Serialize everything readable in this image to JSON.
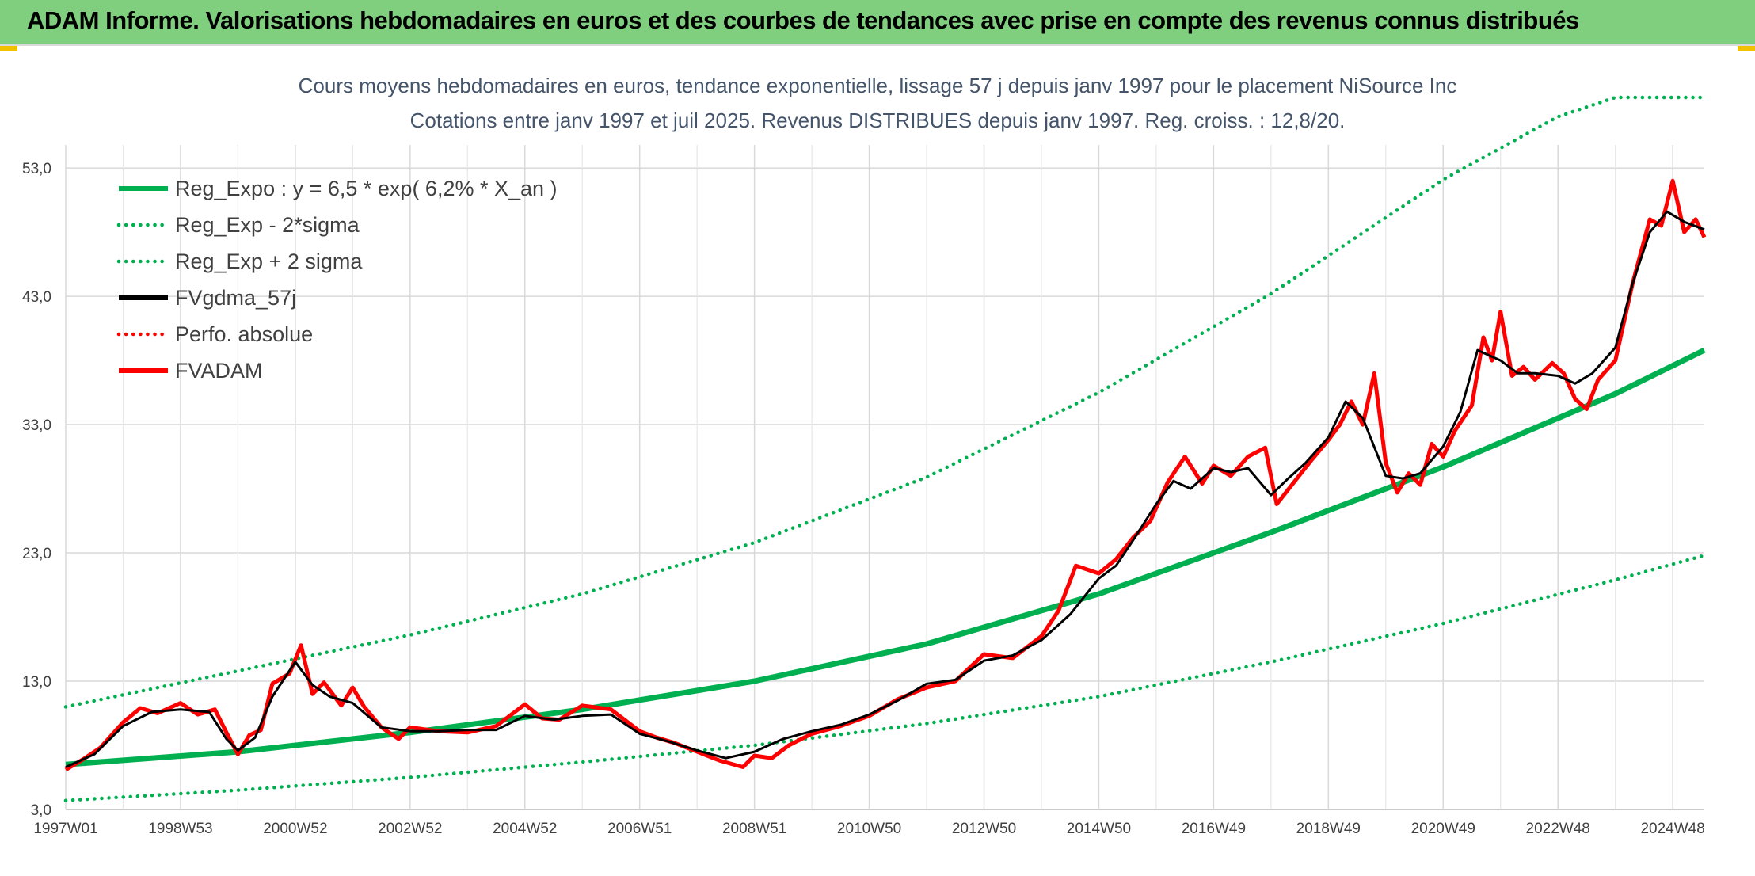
{
  "header": {
    "title": "ADAM Informe. Valorisations hebdomadaires en euros et des courbes de tendances avec prise en compte des revenus connus distribués"
  },
  "chart_data": {
    "type": "line",
    "title": "Cours moyens hebdomadaires en euros, tendance exponentielle, lissage 57 j depuis janv 1997 pour le placement NiSource Inc",
    "subtitle": "Cotations entre janv 1997 et juil 2025. Revenus DISTRIBUES depuis janv 1997. Reg. croiss. : 12,8/20.",
    "xlabel": "",
    "ylabel": "",
    "ylim": [
      3.0,
      58.5
    ],
    "xlim": [
      1997.0,
      2025.55
    ],
    "yticks": [
      "3,0",
      "13,0",
      "23,0",
      "33,0",
      "43,0",
      "53,0"
    ],
    "ytick_values": [
      3,
      13,
      23,
      33,
      43,
      53
    ],
    "xticks": [
      "1997W01",
      "1998W53",
      "2000W52",
      "2002W52",
      "2004W52",
      "2006W51",
      "2008W51",
      "2010W50",
      "2012W50",
      "2014W50",
      "2016W49",
      "2018W49",
      "2020W49",
      "2022W48",
      "2024W48"
    ],
    "xtick_values": [
      1997.0,
      1999.0,
      2001.0,
      2003.0,
      2005.0,
      2007.0,
      2009.0,
      2011.0,
      2013.0,
      2015.0,
      2017.0,
      2019.0,
      2021.0,
      2023.0,
      2025.0
    ],
    "grid": true,
    "legend_position": "top-left",
    "series": [
      {
        "name": "Reg_Expo : y = 6,5 * exp( 6,2% *  X_an )",
        "color": "#00b050",
        "style": "solid",
        "x": [
          1997.0,
          2000.0,
          2003.0,
          2006.0,
          2009.0,
          2012.0,
          2015.0,
          2018.0,
          2021.0,
          2024.0,
          2025.55
        ],
        "y": [
          6.5,
          7.5,
          9.0,
          10.8,
          13.0,
          15.9,
          19.8,
          24.6,
          29.7,
          35.4,
          38.8
        ]
      },
      {
        "name": "Reg_Exp - 2*sigma",
        "color": "#00b050",
        "style": "dotted",
        "x": [
          1997.0,
          2000.0,
          2003.0,
          2006.0,
          2009.0,
          2012.0,
          2015.0,
          2018.0,
          2021.0,
          2024.0,
          2025.55
        ],
        "y": [
          3.7,
          4.5,
          5.5,
          6.7,
          8.0,
          9.7,
          11.8,
          14.5,
          17.5,
          20.9,
          22.8
        ]
      },
      {
        "name": "Reg_Exp + 2 sigma",
        "color": "#00b050",
        "style": "dotted",
        "x": [
          1997.0,
          2000.0,
          2003.0,
          2006.0,
          2009.0,
          2012.0,
          2015.0,
          2018.0,
          2021.0,
          2023.0,
          2024.0,
          2025.55
        ],
        "y": [
          11.0,
          13.8,
          16.6,
          19.8,
          23.8,
          28.9,
          35.5,
          43.2,
          52.1,
          57.0,
          58.5,
          58.5
        ]
      },
      {
        "name": "FVgdma_57j",
        "color": "#000000",
        "style": "solid",
        "x": [
          1997.0,
          1997.5,
          1998.0,
          1998.5,
          1999.0,
          1999.5,
          1999.8,
          2000.0,
          2000.3,
          2000.6,
          2001.0,
          2001.3,
          2001.6,
          2002.0,
          2002.5,
          2003.0,
          2003.5,
          2004.0,
          2004.5,
          2005.0,
          2005.5,
          2006.0,
          2006.5,
          2007.0,
          2007.5,
          2008.0,
          2008.5,
          2009.0,
          2009.5,
          2010.0,
          2010.5,
          2011.0,
          2011.5,
          2012.0,
          2012.5,
          2013.0,
          2013.5,
          2014.0,
          2014.5,
          2015.0,
          2015.3,
          2015.6,
          2016.0,
          2016.3,
          2016.6,
          2017.0,
          2017.3,
          2017.6,
          2018.0,
          2018.3,
          2018.6,
          2019.0,
          2019.3,
          2019.6,
          2020.0,
          2020.3,
          2020.6,
          2021.0,
          2021.3,
          2021.6,
          2022.0,
          2022.3,
          2022.6,
          2023.0,
          2023.3,
          2023.6,
          2024.0,
          2024.3,
          2024.6,
          2024.9,
          2025.2,
          2025.55
        ],
        "y": [
          6.3,
          7.3,
          9.5,
          10.6,
          10.8,
          10.6,
          8.5,
          7.6,
          8.6,
          11.8,
          14.5,
          12.7,
          11.8,
          11.3,
          9.4,
          9.1,
          9.1,
          9.2,
          9.2,
          10.3,
          10.0,
          10.3,
          10.4,
          8.9,
          8.3,
          7.6,
          7.0,
          7.5,
          8.5,
          9.1,
          9.6,
          10.4,
          11.5,
          12.8,
          13.1,
          14.6,
          15.0,
          16.2,
          18.2,
          21.0,
          22.0,
          24.0,
          26.8,
          28.6,
          28.0,
          29.6,
          29.3,
          29.6,
          27.5,
          28.8,
          30.0,
          32.0,
          34.8,
          33.5,
          29.0,
          28.8,
          29.2,
          31.3,
          34.0,
          38.8,
          38.0,
          37.0,
          37.0,
          36.8,
          36.2,
          37.0,
          39.0,
          44.0,
          48.0,
          49.6,
          48.8,
          48.2
        ]
      },
      {
        "name": "Perfo. absolue",
        "color": "#ff0000",
        "style": "dotted",
        "x": [],
        "y": []
      },
      {
        "name": "FVADAM",
        "color": "#ff0000",
        "style": "solid",
        "x": [
          1997.0,
          1997.3,
          1997.6,
          1998.0,
          1998.3,
          1998.6,
          1999.0,
          1999.3,
          1999.6,
          1999.8,
          2000.0,
          2000.2,
          2000.4,
          2000.6,
          2000.9,
          2001.1,
          2001.3,
          2001.5,
          2001.8,
          2002.0,
          2002.2,
          2002.5,
          2002.8,
          2003.0,
          2003.5,
          2004.0,
          2004.5,
          2005.0,
          2005.3,
          2005.6,
          2006.0,
          2006.5,
          2007.0,
          2007.3,
          2007.6,
          2008.0,
          2008.4,
          2008.8,
          2009.0,
          2009.3,
          2009.6,
          2010.0,
          2010.5,
          2011.0,
          2011.5,
          2012.0,
          2012.5,
          2013.0,
          2013.5,
          2014.0,
          2014.3,
          2014.6,
          2015.0,
          2015.3,
          2015.6,
          2015.9,
          2016.2,
          2016.5,
          2016.8,
          2017.0,
          2017.3,
          2017.6,
          2017.9,
          2018.1,
          2018.4,
          2018.7,
          2019.0,
          2019.2,
          2019.4,
          2019.6,
          2019.8,
          2020.0,
          2020.2,
          2020.4,
          2020.6,
          2020.8,
          2021.0,
          2021.2,
          2021.5,
          2021.7,
          2021.85,
          2022.0,
          2022.2,
          2022.4,
          2022.6,
          2022.9,
          2023.1,
          2023.3,
          2023.5,
          2023.7,
          2024.0,
          2024.3,
          2024.6,
          2024.8,
          2025.0,
          2025.2,
          2025.4,
          2025.55
        ],
        "y": [
          6.1,
          6.9,
          7.8,
          9.8,
          10.9,
          10.5,
          11.3,
          10.4,
          10.8,
          9.0,
          7.3,
          8.8,
          9.2,
          12.8,
          13.6,
          15.8,
          12.0,
          12.9,
          11.1,
          12.5,
          11.0,
          9.4,
          8.5,
          9.4,
          9.1,
          9.0,
          9.5,
          11.2,
          10.1,
          10.0,
          11.1,
          10.8,
          9.1,
          8.6,
          8.2,
          7.5,
          6.8,
          6.3,
          7.2,
          7.0,
          8.0,
          8.9,
          9.5,
          10.3,
          11.6,
          12.5,
          13.0,
          15.1,
          14.8,
          16.5,
          18.5,
          22.0,
          21.4,
          22.5,
          24.2,
          25.5,
          28.5,
          30.5,
          28.4,
          29.8,
          29.0,
          30.5,
          31.2,
          26.8,
          28.5,
          30.2,
          31.8,
          33.0,
          34.8,
          33.0,
          37.0,
          30.0,
          27.7,
          29.2,
          28.3,
          31.5,
          30.5,
          32.5,
          34.5,
          39.8,
          38.0,
          41.8,
          36.8,
          37.5,
          36.5,
          37.8,
          37.0,
          35.0,
          34.2,
          36.5,
          38.0,
          44.0,
          49.0,
          48.5,
          52.0,
          48.0,
          49.0,
          47.6
        ]
      }
    ]
  }
}
